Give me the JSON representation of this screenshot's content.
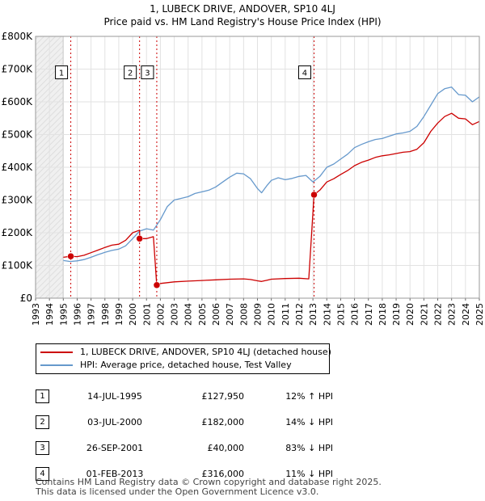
{
  "title_line1": "1, LUBECK DRIVE, ANDOVER, SP10 4LJ",
  "title_line2": "Price paid vs. HM Land Registry's House Price Index (HPI)",
  "legend": {
    "price_label": "1, LUBECK DRIVE, ANDOVER, SP10 4LJ (detached house)",
    "hpi_label": "HPI: Average price, detached house, Test Valley"
  },
  "colors": {
    "price": "#cc0000",
    "hpi": "#6699cc"
  },
  "sales": [
    {
      "num": "1",
      "date": "14-JUL-1995",
      "price": "£127,950",
      "hpi": "12% ↑ HPI"
    },
    {
      "num": "2",
      "date": "03-JUL-2000",
      "price": "£182,000",
      "hpi": "14% ↓ HPI"
    },
    {
      "num": "3",
      "date": "26-SEP-2001",
      "price": "£40,000",
      "hpi": "83% ↓ HPI"
    },
    {
      "num": "4",
      "date": "01-FEB-2013",
      "price": "£316,000",
      "hpi": "11% ↓ HPI"
    }
  ],
  "footer_line1": "Contains HM Land Registry data © Crown copyright and database right 2025.",
  "footer_line2": "This data is licensed under the Open Government Licence v3.0.",
  "chart_data": {
    "type": "line",
    "xlim": [
      1993,
      2025
    ],
    "ylim": [
      0,
      800000
    ],
    "y_ticks": [
      0,
      100000,
      200000,
      300000,
      400000,
      500000,
      600000,
      700000,
      800000
    ],
    "y_tick_labels": [
      "£0",
      "£100K",
      "£200K",
      "£300K",
      "£400K",
      "£500K",
      "£600K",
      "£700K",
      "£800K"
    ],
    "x_ticks": [
      1993,
      1994,
      1995,
      1996,
      1997,
      1998,
      1999,
      2000,
      2001,
      2002,
      2003,
      2004,
      2005,
      2006,
      2007,
      2008,
      2009,
      2010,
      2011,
      2012,
      2013,
      2014,
      2015,
      2016,
      2017,
      2018,
      2019,
      2020,
      2021,
      2022,
      2023,
      2024,
      2025
    ],
    "pre_data_end": 1995.0,
    "series": [
      {
        "name": "HPI: Average price, detached house, Test Valley",
        "x": [
          1995.0,
          1995.5,
          1996.0,
          1996.5,
          1997.0,
          1997.5,
          1998.0,
          1998.5,
          1999.0,
          1999.5,
          2000.0,
          2000.5,
          2001.0,
          2001.5,
          2002.0,
          2002.5,
          2003.0,
          2003.5,
          2004.0,
          2004.5,
          2005.0,
          2005.5,
          2006.0,
          2006.5,
          2007.0,
          2007.5,
          2008.0,
          2008.5,
          2009.0,
          2009.3,
          2009.7,
          2010.0,
          2010.5,
          2011.0,
          2011.5,
          2012.0,
          2012.5,
          2013.0,
          2013.5,
          2014.0,
          2014.5,
          2015.0,
          2015.5,
          2016.0,
          2016.5,
          2017.0,
          2017.5,
          2018.0,
          2018.5,
          2019.0,
          2019.5,
          2020.0,
          2020.5,
          2021.0,
          2021.5,
          2022.0,
          2022.5,
          2023.0,
          2023.5,
          2024.0,
          2024.5,
          2025.0
        ],
        "y": [
          115000,
          112000,
          114000,
          118000,
          125000,
          133000,
          140000,
          146000,
          150000,
          160000,
          182000,
          205000,
          212000,
          208000,
          240000,
          280000,
          300000,
          305000,
          310000,
          320000,
          325000,
          330000,
          340000,
          355000,
          370000,
          382000,
          380000,
          365000,
          335000,
          322000,
          345000,
          360000,
          368000,
          362000,
          366000,
          372000,
          375000,
          355000,
          372000,
          400000,
          410000,
          425000,
          440000,
          460000,
          470000,
          478000,
          485000,
          488000,
          495000,
          502000,
          505000,
          510000,
          525000,
          555000,
          590000,
          625000,
          640000,
          645000,
          622000,
          620000,
          600000,
          615000
        ]
      },
      {
        "name": "1, LUBECK DRIVE, ANDOVER, SP10 4LJ (detached house)",
        "x": [
          1995.0,
          1995.54,
          1996.0,
          1996.5,
          1997.0,
          1997.5,
          1998.0,
          1998.5,
          1999.0,
          1999.5,
          2000.0,
          2000.5,
          2000.51,
          2001.0,
          2001.5,
          2001.74,
          2002.0,
          2003.0,
          2004.0,
          2005.0,
          2006.0,
          2007.0,
          2008.0,
          2008.5,
          2009.0,
          2009.3,
          2009.7,
          2010.0,
          2011.0,
          2012.0,
          2012.7,
          2013.08,
          2013.5,
          2014.0,
          2014.5,
          2015.0,
          2015.5,
          2016.0,
          2016.5,
          2017.0,
          2017.5,
          2018.0,
          2018.5,
          2019.0,
          2019.5,
          2020.0,
          2020.5,
          2021.0,
          2021.5,
          2022.0,
          2022.5,
          2023.0,
          2023.5,
          2024.0,
          2024.5,
          2025.0
        ],
        "y": [
          125000,
          127950,
          127000,
          131000,
          139000,
          147000,
          155000,
          162000,
          165000,
          177000,
          200000,
          208000,
          182000,
          182000,
          188000,
          40000,
          45000,
          50000,
          52000,
          54000,
          56000,
          58000,
          59000,
          57000,
          53000,
          51000,
          55000,
          58000,
          60000,
          61000,
          59000,
          316000,
          330000,
          355000,
          365000,
          378000,
          390000,
          405000,
          415000,
          422000,
          430000,
          435000,
          438000,
          442000,
          446000,
          448000,
          455000,
          475000,
          510000,
          535000,
          555000,
          565000,
          550000,
          548000,
          530000,
          540000
        ]
      }
    ],
    "sale_markers": [
      {
        "label": "1",
        "x": 1995.54,
        "y": 127950
      },
      {
        "label": "2",
        "x": 2000.5,
        "y": 182000
      },
      {
        "label": "3",
        "x": 2001.74,
        "y": 40000
      },
      {
        "label": "4",
        "x": 2013.08,
        "y": 316000
      }
    ]
  }
}
